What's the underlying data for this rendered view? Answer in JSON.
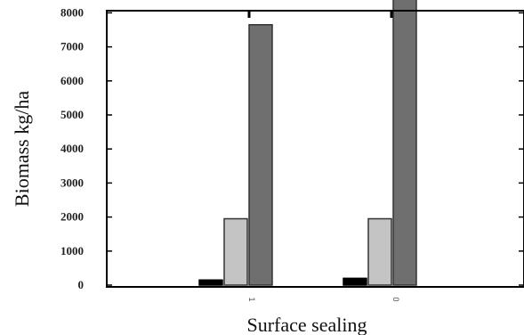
{
  "chart_data": {
    "type": "bar",
    "title": "",
    "xlabel": "Surface sealing",
    "ylabel": "Biomass kg/ha",
    "yticks": [
      "0",
      "1000",
      "2000",
      "3000",
      "4000",
      "5000",
      "6000",
      "7000",
      "8000"
    ],
    "ylim": [
      0,
      9200
    ],
    "categories": [
      "1",
      "0"
    ],
    "series": [
      {
        "values": [
          150,
          200
        ],
        "color": "#000000"
      },
      {
        "values": [
          1950,
          1950
        ],
        "color": "#c4c4c4"
      },
      {
        "values": [
          7650,
          8550
        ],
        "color": "#6f6f6f"
      }
    ],
    "grid": false,
    "legend": "none"
  }
}
